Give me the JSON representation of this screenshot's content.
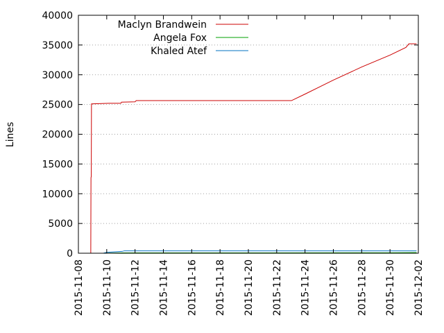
{
  "chart_data": {
    "type": "line",
    "title": "",
    "xlabel": "",
    "ylabel": "Lines",
    "xlim": [
      "2015-11-08",
      "2015-12-02"
    ],
    "ylim": [
      0,
      40000
    ],
    "x_ticks": [
      "2015-11-08",
      "2015-11-10",
      "2015-11-12",
      "2015-11-14",
      "2015-11-16",
      "2015-11-18",
      "2015-11-20",
      "2015-11-22",
      "2015-11-24",
      "2015-11-26",
      "2015-11-28",
      "2015-11-30",
      "2015-12-02"
    ],
    "y_ticks": [
      "0",
      "5000",
      "10000",
      "15000",
      "20000",
      "25000",
      "30000",
      "35000",
      "40000"
    ],
    "grid": true,
    "legend": "top-left",
    "series": [
      {
        "name": "Maclyn Brandwein",
        "color": "#cc0000",
        "points": [
          [
            "2015-11-08 21:00",
            0
          ],
          [
            "2015-11-08 21:20",
            12700
          ],
          [
            "2015-11-08 21:50",
            12900
          ],
          [
            "2015-11-08 22:10",
            25100
          ],
          [
            "2015-11-10 04:00",
            25200
          ],
          [
            "2015-11-11 00:00",
            25200
          ],
          [
            "2015-11-11 01:00",
            25400
          ],
          [
            "2015-11-12 00:00",
            25450
          ],
          [
            "2015-11-12 02:00",
            25650
          ],
          [
            "2015-11-23 01:00",
            25650
          ],
          [
            "2015-11-24 00:00",
            26750
          ],
          [
            "2015-11-26 00:00",
            29100
          ],
          [
            "2015-11-28 00:00",
            31300
          ],
          [
            "2015-11-30 00:00",
            33300
          ],
          [
            "2015-12-01 03:00",
            34600
          ],
          [
            "2015-12-01 08:00",
            35200
          ],
          [
            "2015-12-01 21:00",
            35200
          ]
        ]
      },
      {
        "name": "Angela Fox",
        "color": "#00a000",
        "points": [
          [
            "2015-11-09 18:00",
            0
          ],
          [
            "2015-11-10 12:00",
            30
          ],
          [
            "2015-11-11 03:00",
            60
          ],
          [
            "2015-11-30 00:00",
            70
          ],
          [
            "2015-12-01 21:00",
            100
          ]
        ]
      },
      {
        "name": "Khaled Atef",
        "color": "#0070c0",
        "points": [
          [
            "2015-11-09 18:00",
            0
          ],
          [
            "2015-11-10 00:00",
            150
          ],
          [
            "2015-11-11 02:00",
            300
          ],
          [
            "2015-11-11 06:00",
            400
          ],
          [
            "2015-12-01 21:00",
            400
          ]
        ]
      }
    ]
  }
}
